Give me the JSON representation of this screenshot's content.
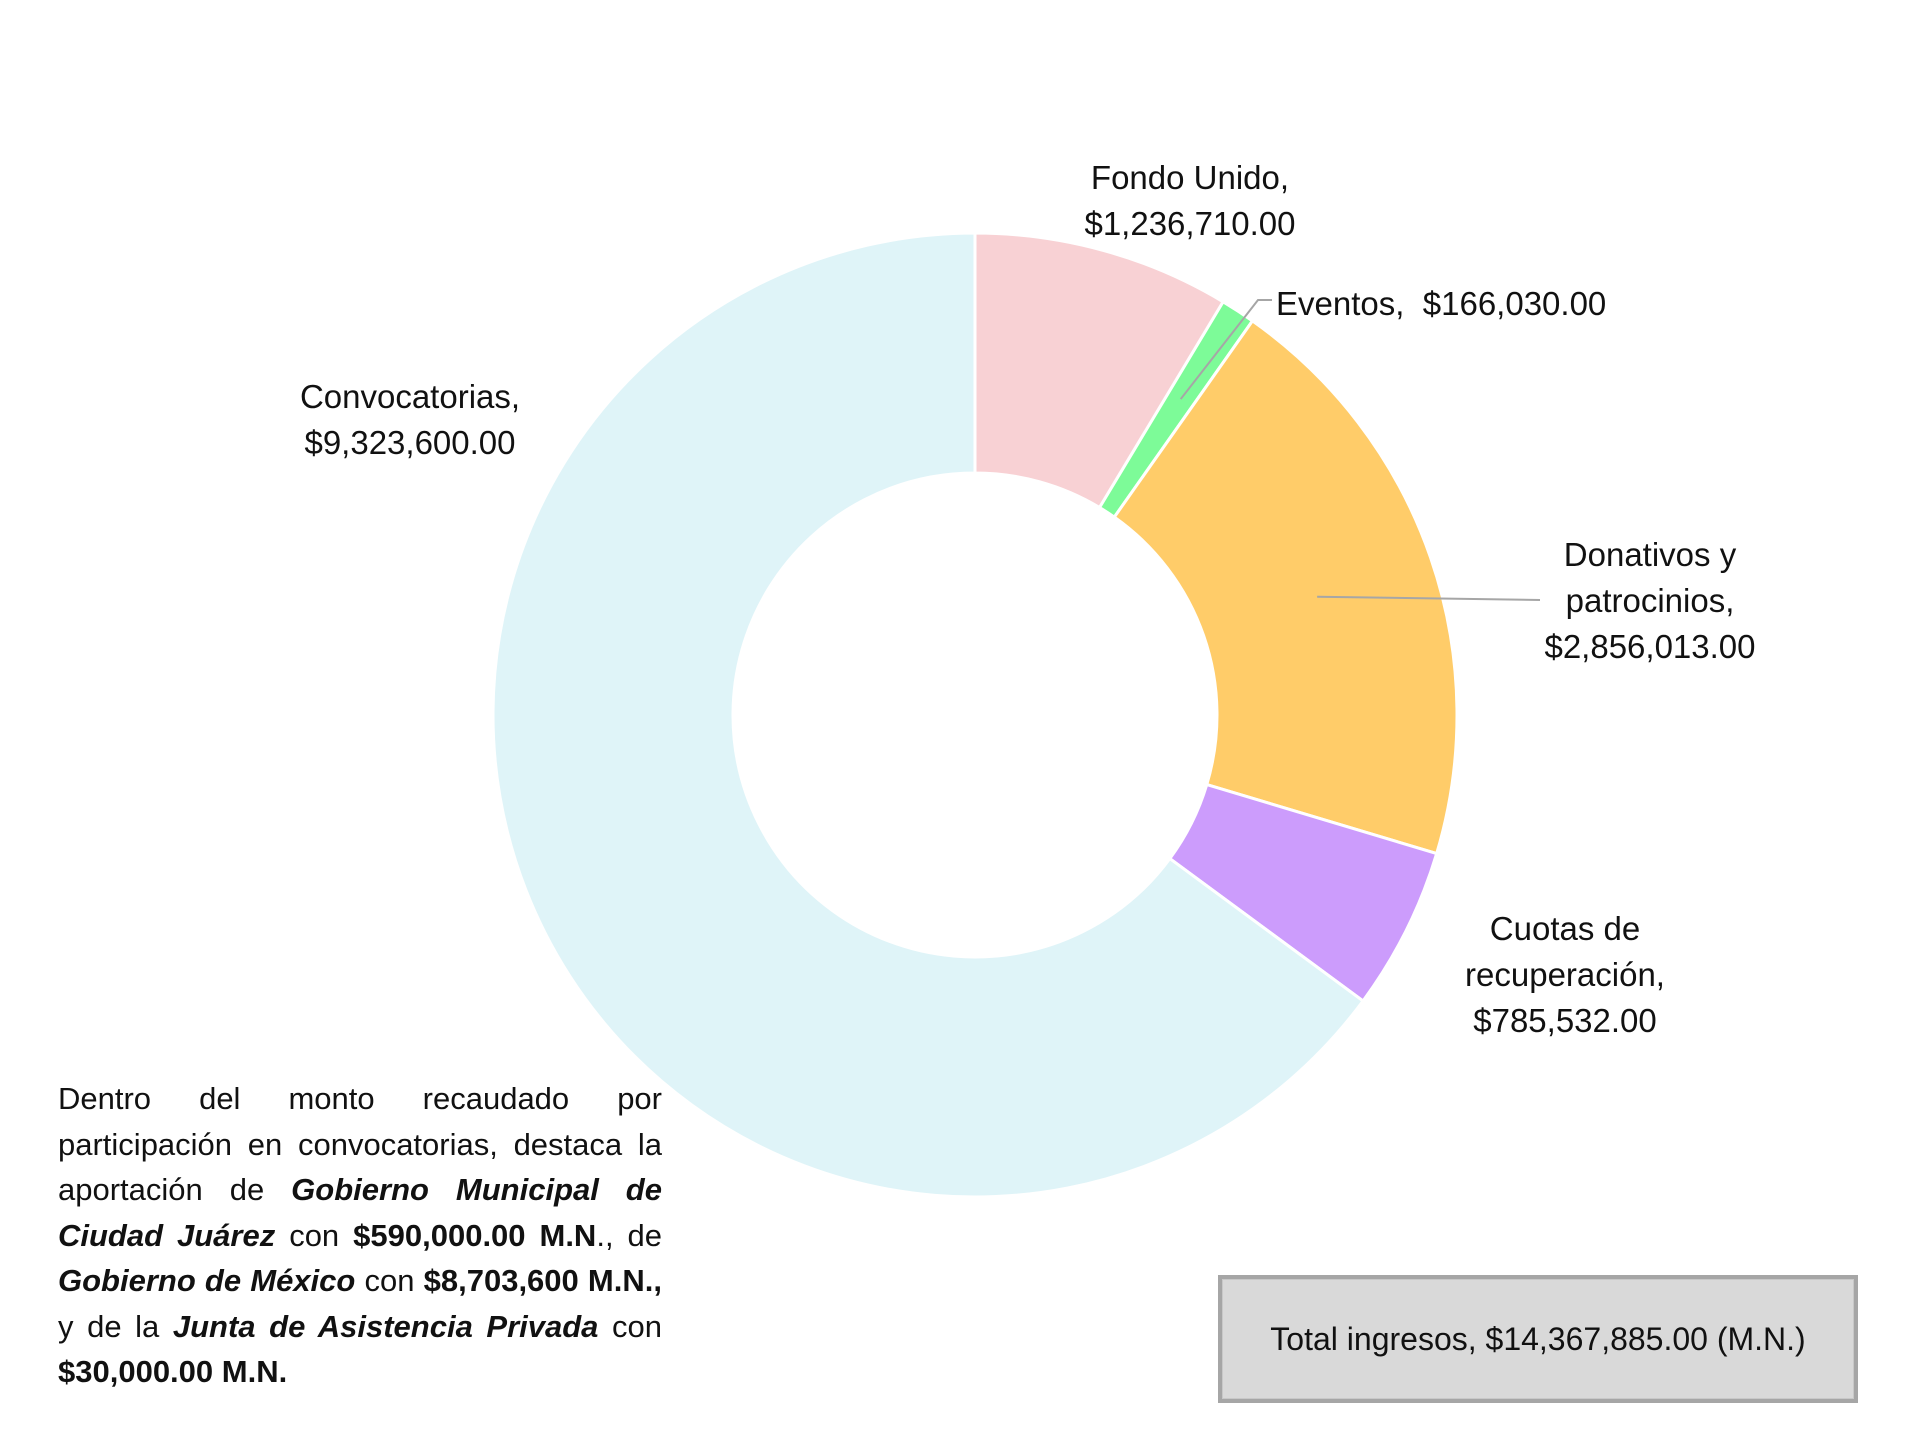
{
  "chart_data": {
    "type": "pie",
    "variant": "donut",
    "slices": [
      {
        "label": "Fondo Unido,",
        "value_text": "$1,236,710.00",
        "value": 1236710,
        "color": "#f8d1d4"
      },
      {
        "label": "Eventos,",
        "value_text": "$166,030.00",
        "value": 166030,
        "color": "#7dfb98"
      },
      {
        "label": "Donativos y patrocinios,",
        "value_text": "$2,856,013.00",
        "value": 2856013,
        "color": "#ffcc69"
      },
      {
        "label": "Cuotas de recuperación,",
        "value_text": "$785,532.00",
        "value": 785532,
        "color": "#cc9cfc"
      },
      {
        "label": "Convocatorias,",
        "value_text": "$9,323,600.00",
        "value": 9323600,
        "color": "#dff4f8"
      }
    ],
    "labels": {
      "fondo": {
        "line1": "Fondo Unido,",
        "line2": "$1,236,710.00"
      },
      "eventos": {
        "line1": "Eventos,",
        "line2": "$166,030.00"
      },
      "donativos": {
        "line1": "Donativos y",
        "line2": "patrocinios,",
        "line3": "$2,856,013.00"
      },
      "cuotas": {
        "line1": "Cuotas de",
        "line2": "recuperación,",
        "line3": "$785,532.00"
      },
      "convocatorias": {
        "line1": "Convocatorias,",
        "line2": "$9,323,600.00"
      }
    },
    "legend": "none"
  },
  "note": {
    "t1": "Dentro del monto recaudado por participación en convocatorias, destaca la aportación de ",
    "b1": "Gobierno Municipal de Ciudad Juárez",
    "t2": " con ",
    "a1": "$590,000.00 M.N",
    "t3": "., de ",
    "b2": "Gobierno de México",
    "t4": " con ",
    "a2": "$8,703,600 M.N.,",
    "t5": " y de la ",
    "b3": "Junta de Asistencia Privada",
    "t6": " con ",
    "a3": "$30,000.00 M.N."
  },
  "total": "Total ingresos, $14,367,885.00  (M.N.)"
}
